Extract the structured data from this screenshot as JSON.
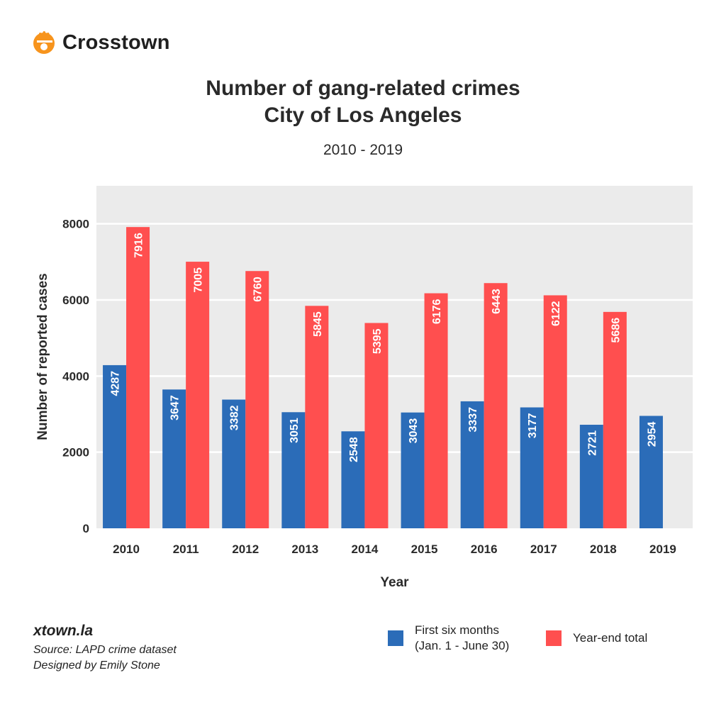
{
  "brand": {
    "name": "Crosstown",
    "color": "#f7941d"
  },
  "footer": {
    "site": "xtown.la",
    "source": "Source: LAPD crime dataset",
    "designer": "Designed by Emily Stone"
  },
  "legend": {
    "first_half_line1": "First six months",
    "first_half_line2": "(Jan. 1 - June 30)",
    "year_end": "Year-end total"
  },
  "chart_data": {
    "type": "bar",
    "title_line1": "Number of gang-related crimes",
    "title_line2": "City of Los Angeles",
    "subtitle": "2010 - 2019",
    "xlabel": "Year",
    "ylabel": "Number of reported cases",
    "ylim": [
      0,
      9000
    ],
    "yticks": [
      0,
      2000,
      4000,
      6000,
      8000
    ],
    "grid": true,
    "legend_position": "bottom-right",
    "categories": [
      "2010",
      "2011",
      "2012",
      "2013",
      "2014",
      "2015",
      "2016",
      "2017",
      "2018",
      "2019"
    ],
    "series": [
      {
        "name": "First six months (Jan. 1 - June 30)",
        "color": "#2b6cb8",
        "values": [
          4287,
          3647,
          3382,
          3051,
          2548,
          3043,
          3337,
          3177,
          2721,
          2954
        ]
      },
      {
        "name": "Year-end total",
        "color": "#ff4f4f",
        "values": [
          7916,
          7005,
          6760,
          5845,
          5395,
          6176,
          6443,
          6122,
          5686,
          null
        ]
      }
    ],
    "plot_background": "#ebebeb",
    "gridline_color": "#ffffff"
  }
}
